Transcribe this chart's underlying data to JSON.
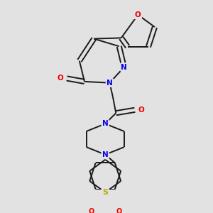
{
  "background_color": "#e2e2e2",
  "bond_color": "#1a1a1a",
  "atom_colors": {
    "N": "#0000ee",
    "O": "#ee0000",
    "S": "#bbaa00",
    "C": "#1a1a1a"
  },
  "figsize": [
    3.0,
    3.0
  ],
  "dpi": 100
}
